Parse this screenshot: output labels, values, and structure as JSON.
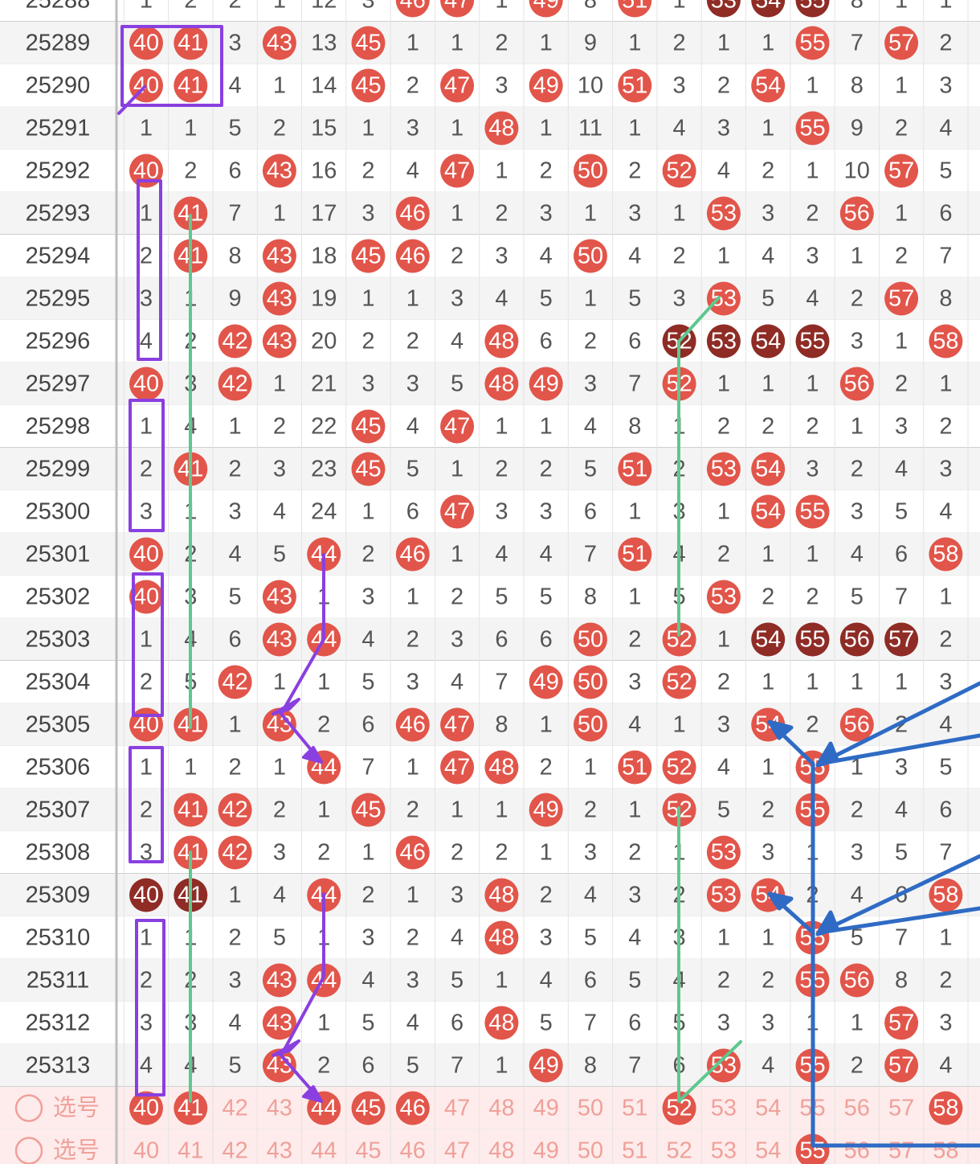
{
  "rows": [
    {
      "label": "25288",
      "cells": [
        1,
        2,
        2,
        1,
        12,
        3,
        46,
        47,
        1,
        49,
        8,
        51,
        1,
        53,
        54,
        55,
        8,
        1,
        1
      ],
      "style": "......rr.r.r.ddd..."
    },
    {
      "label": "25289",
      "cells": [
        40,
        41,
        3,
        43,
        13,
        45,
        1,
        1,
        2,
        1,
        9,
        1,
        2,
        1,
        1,
        55,
        7,
        57,
        2
      ],
      "style": "rr.r.r.........r.r."
    },
    {
      "label": "25290",
      "cells": [
        40,
        41,
        4,
        1,
        14,
        45,
        2,
        47,
        3,
        49,
        10,
        51,
        3,
        2,
        54,
        1,
        8,
        1,
        3
      ],
      "style": "rr...r.r.r.r..r...."
    },
    {
      "label": "25291",
      "cells": [
        1,
        1,
        5,
        2,
        15,
        1,
        3,
        1,
        48,
        1,
        11,
        1,
        4,
        3,
        1,
        55,
        9,
        2,
        4
      ],
      "style": "........r......r..."
    },
    {
      "label": "25292",
      "cells": [
        40,
        2,
        6,
        43,
        16,
        2,
        4,
        47,
        1,
        2,
        50,
        2,
        52,
        4,
        2,
        1,
        10,
        57,
        5
      ],
      "style": "r..r...r..r.r....r."
    },
    {
      "label": "25293",
      "cells": [
        1,
        41,
        7,
        1,
        17,
        3,
        46,
        1,
        2,
        3,
        1,
        3,
        1,
        53,
        3,
        2,
        56,
        1,
        6
      ],
      "style": ".r....r......r..r.."
    },
    {
      "label": "25294",
      "cells": [
        2,
        41,
        8,
        43,
        18,
        45,
        46,
        2,
        3,
        4,
        50,
        4,
        2,
        1,
        4,
        3,
        1,
        2,
        7
      ],
      "style": ".r.r.rr...r........"
    },
    {
      "label": "25295",
      "cells": [
        3,
        1,
        9,
        43,
        19,
        1,
        1,
        3,
        4,
        5,
        1,
        5,
        3,
        53,
        5,
        4,
        2,
        57,
        8
      ],
      "style": "...r.........r...r."
    },
    {
      "label": "25296",
      "cells": [
        4,
        2,
        42,
        43,
        20,
        2,
        2,
        4,
        48,
        6,
        2,
        6,
        52,
        53,
        54,
        55,
        3,
        1,
        58
      ],
      "style": "..rr....r...dddd..r"
    },
    {
      "label": "25297",
      "cells": [
        40,
        3,
        42,
        1,
        21,
        3,
        3,
        5,
        48,
        49,
        3,
        7,
        52,
        1,
        1,
        1,
        56,
        2,
        1
      ],
      "style": "r.r.....rr..r...r.."
    },
    {
      "label": "25298",
      "cells": [
        1,
        4,
        1,
        2,
        22,
        45,
        4,
        47,
        1,
        1,
        4,
        8,
        1,
        2,
        2,
        2,
        1,
        3,
        2
      ],
      "style": ".....r.r..........."
    },
    {
      "label": "25299",
      "cells": [
        2,
        41,
        2,
        3,
        23,
        45,
        5,
        1,
        2,
        2,
        5,
        51,
        2,
        53,
        54,
        3,
        2,
        4,
        3
      ],
      "style": ".r...r.....r.rr...."
    },
    {
      "label": "25300",
      "cells": [
        3,
        1,
        3,
        4,
        24,
        1,
        6,
        47,
        3,
        3,
        6,
        1,
        3,
        1,
        54,
        55,
        3,
        5,
        4
      ],
      "style": ".......r......rr..."
    },
    {
      "label": "25301",
      "cells": [
        40,
        2,
        4,
        5,
        44,
        2,
        46,
        1,
        4,
        4,
        7,
        51,
        4,
        2,
        1,
        1,
        4,
        6,
        58
      ],
      "style": "r...r.r....r......r"
    },
    {
      "label": "25302",
      "cells": [
        40,
        3,
        5,
        43,
        1,
        3,
        1,
        2,
        5,
        5,
        8,
        1,
        5,
        53,
        2,
        2,
        5,
        7,
        1
      ],
      "style": "r..r.........r....."
    },
    {
      "label": "25303",
      "cells": [
        1,
        4,
        6,
        43,
        44,
        4,
        2,
        3,
        6,
        6,
        50,
        2,
        52,
        1,
        54,
        55,
        56,
        57,
        2
      ],
      "style": "...rr.....r.r.dddd."
    },
    {
      "label": "25304",
      "cells": [
        2,
        5,
        42,
        1,
        1,
        5,
        3,
        4,
        7,
        49,
        50,
        3,
        52,
        2,
        1,
        1,
        1,
        1,
        3
      ],
      "style": "..r......rr.r......"
    },
    {
      "label": "25305",
      "cells": [
        40,
        41,
        1,
        43,
        2,
        6,
        46,
        47,
        8,
        1,
        50,
        4,
        1,
        3,
        54,
        2,
        56,
        2,
        4
      ],
      "style": "rr.r..rr..r...r.r.."
    },
    {
      "label": "25306",
      "cells": [
        1,
        1,
        2,
        1,
        44,
        7,
        1,
        47,
        48,
        2,
        1,
        51,
        52,
        4,
        1,
        55,
        1,
        3,
        5
      ],
      "style": "....r..rr..rr..r..."
    },
    {
      "label": "25307",
      "cells": [
        2,
        41,
        42,
        2,
        1,
        45,
        2,
        1,
        1,
        49,
        2,
        1,
        52,
        5,
        2,
        55,
        2,
        4,
        6
      ],
      "style": ".rr..r...r..r..r..."
    },
    {
      "label": "25308",
      "cells": [
        3,
        41,
        42,
        3,
        2,
        1,
        46,
        2,
        2,
        1,
        3,
        2,
        1,
        53,
        3,
        1,
        3,
        5,
        7
      ],
      "style": ".rr...r......r....."
    },
    {
      "label": "25309",
      "cells": [
        40,
        41,
        1,
        4,
        44,
        2,
        1,
        3,
        48,
        2,
        4,
        3,
        2,
        53,
        54,
        2,
        4,
        6,
        58
      ],
      "style": "dd..r...r....rr...r"
    },
    {
      "label": "25310",
      "cells": [
        1,
        1,
        2,
        5,
        1,
        3,
        2,
        4,
        48,
        3,
        5,
        4,
        3,
        1,
        1,
        55,
        5,
        7,
        1
      ],
      "style": "........r......r..."
    },
    {
      "label": "25311",
      "cells": [
        2,
        2,
        3,
        43,
        44,
        4,
        3,
        5,
        1,
        4,
        6,
        5,
        4,
        2,
        2,
        55,
        56,
        8,
        2
      ],
      "style": "...rr..........rr.."
    },
    {
      "label": "25312",
      "cells": [
        3,
        3,
        4,
        43,
        1,
        5,
        4,
        6,
        48,
        5,
        7,
        6,
        5,
        3,
        3,
        1,
        1,
        57,
        3
      ],
      "style": "...r....r........r."
    },
    {
      "label": "25313",
      "cells": [
        4,
        4,
        5,
        43,
        2,
        6,
        5,
        7,
        1,
        49,
        8,
        7,
        6,
        53,
        4,
        55,
        2,
        57,
        4
      ],
      "style": "...r.....r...r.r.r."
    },
    {
      "label": "选号",
      "pick": true,
      "cells": [
        40,
        41,
        42,
        43,
        44,
        45,
        46,
        47,
        48,
        49,
        50,
        51,
        52,
        53,
        54,
        55,
        56,
        57,
        58
      ],
      "style": "rr..rrr.....r.....r"
    },
    {
      "label": "选号",
      "pick": true,
      "cells": [
        40,
        41,
        42,
        43,
        44,
        45,
        46,
        47,
        48,
        49,
        50,
        51,
        52,
        53,
        54,
        55,
        56,
        57,
        58
      ],
      "style": "...............r..."
    }
  ]
}
